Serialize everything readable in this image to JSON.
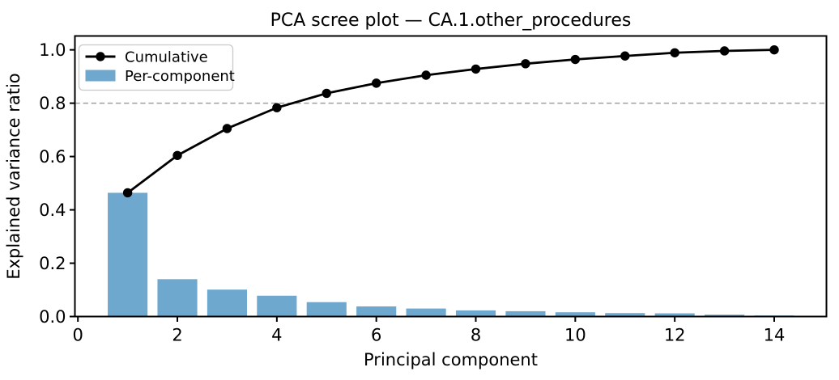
{
  "figure": {
    "title": "PCA scree plot — CA.1.other_procedures",
    "xlabel": "Principal component",
    "ylabel": "Explained variance ratio"
  },
  "chart_data": {
    "type": "bar",
    "title": "PCA scree plot — CA.1.other_procedures",
    "xlabel": "Principal component",
    "ylabel": "Explained variance ratio",
    "components": [
      1,
      2,
      3,
      4,
      5,
      6,
      7,
      8,
      9,
      10,
      11,
      12,
      13,
      14
    ],
    "series": [
      {
        "name": "Cumulative",
        "type": "line",
        "values": [
          0.464,
          0.604,
          0.705,
          0.783,
          0.837,
          0.875,
          0.905,
          0.928,
          0.948,
          0.964,
          0.977,
          0.989,
          0.996,
          1.0
        ]
      },
      {
        "name": "Per-component",
        "type": "bar",
        "values": [
          0.464,
          0.14,
          0.101,
          0.078,
          0.054,
          0.038,
          0.03,
          0.023,
          0.02,
          0.016,
          0.013,
          0.012,
          0.007,
          0.004
        ]
      }
    ],
    "threshold_line": {
      "y": 0.8,
      "style": "dashed"
    },
    "xticks": [
      0,
      2,
      4,
      6,
      8,
      10,
      12,
      14
    ],
    "yticks": [
      0.0,
      0.2,
      0.4,
      0.6,
      0.8,
      1.0
    ],
    "xlim": [
      -0.06,
      15.05
    ],
    "ylim": [
      0,
      1.052
    ],
    "legend_position": "upper left",
    "grid": false,
    "colors": {
      "bar": "#6fa8ce",
      "line": "#000000",
      "threshold": "#9f9f9f",
      "spine": "#000000",
      "legend_border": "#c9c9c9"
    }
  }
}
